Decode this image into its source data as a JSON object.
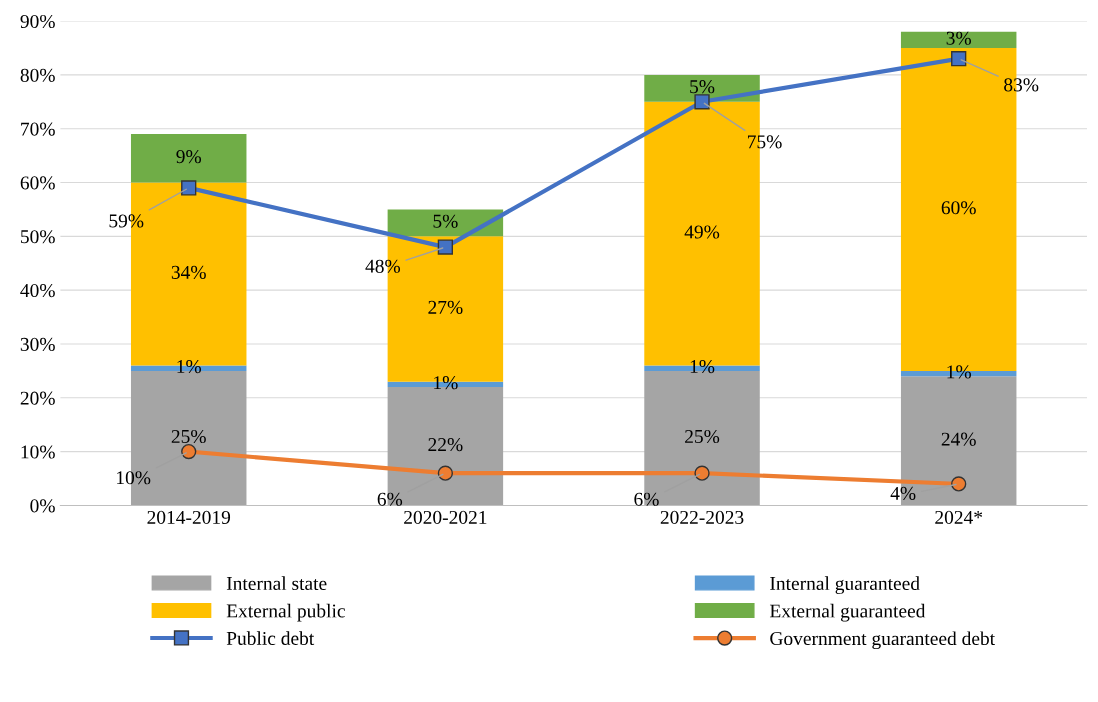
{
  "chart_data": {
    "type": "bar",
    "stacked": true,
    "categories": [
      "2014-2019",
      "2020-2021",
      "2022-2023",
      "2024*"
    ],
    "series": [
      {
        "name": "Internal state",
        "color": "#a5a5a5",
        "values": [
          25,
          22,
          25,
          24
        ],
        "value_labels": [
          "25%",
          "22%",
          "25%",
          "24%"
        ]
      },
      {
        "name": "Internal guaranteed",
        "color": "#5b9bd5",
        "values": [
          1,
          1,
          1,
          1
        ],
        "value_labels": [
          "1%",
          "1%",
          "1%",
          "1%"
        ]
      },
      {
        "name": "External public",
        "color": "#ffc000",
        "values": [
          34,
          27,
          49,
          60
        ],
        "value_labels": [
          "34%",
          "27%",
          "49%",
          "60%"
        ]
      },
      {
        "name": "External guaranteed",
        "color": "#70ad47",
        "values": [
          9,
          5,
          5,
          3
        ],
        "value_labels": [
          "9%",
          "5%",
          "5%",
          "3%"
        ]
      },
      {
        "name": "Public debt",
        "type": "line",
        "marker": "square",
        "color": "#4472c4",
        "values": [
          59,
          48,
          75,
          83
        ],
        "value_labels": [
          "59%",
          "48%",
          "75%",
          "83%"
        ]
      },
      {
        "name": "Government guaranteed debt",
        "type": "line",
        "marker": "circle",
        "color": "#ed7d31",
        "values": [
          10,
          6,
          6,
          4
        ],
        "value_labels": [
          "10%",
          "6%",
          "6%",
          "4%"
        ]
      }
    ],
    "ylim": [
      0,
      90
    ],
    "yticks": [
      {
        "value": 0,
        "label": "0%"
      },
      {
        "value": 10,
        "label": "10%"
      },
      {
        "value": 20,
        "label": "20%"
      },
      {
        "value": 30,
        "label": "30%"
      },
      {
        "value": 40,
        "label": "40%"
      },
      {
        "value": 50,
        "label": "50%"
      },
      {
        "value": 60,
        "label": "60%"
      },
      {
        "value": 70,
        "label": "70%"
      },
      {
        "value": 80,
        "label": "80%"
      },
      {
        "value": 90,
        "label": "90%"
      }
    ],
    "grid": "y",
    "legend": "bottom"
  }
}
